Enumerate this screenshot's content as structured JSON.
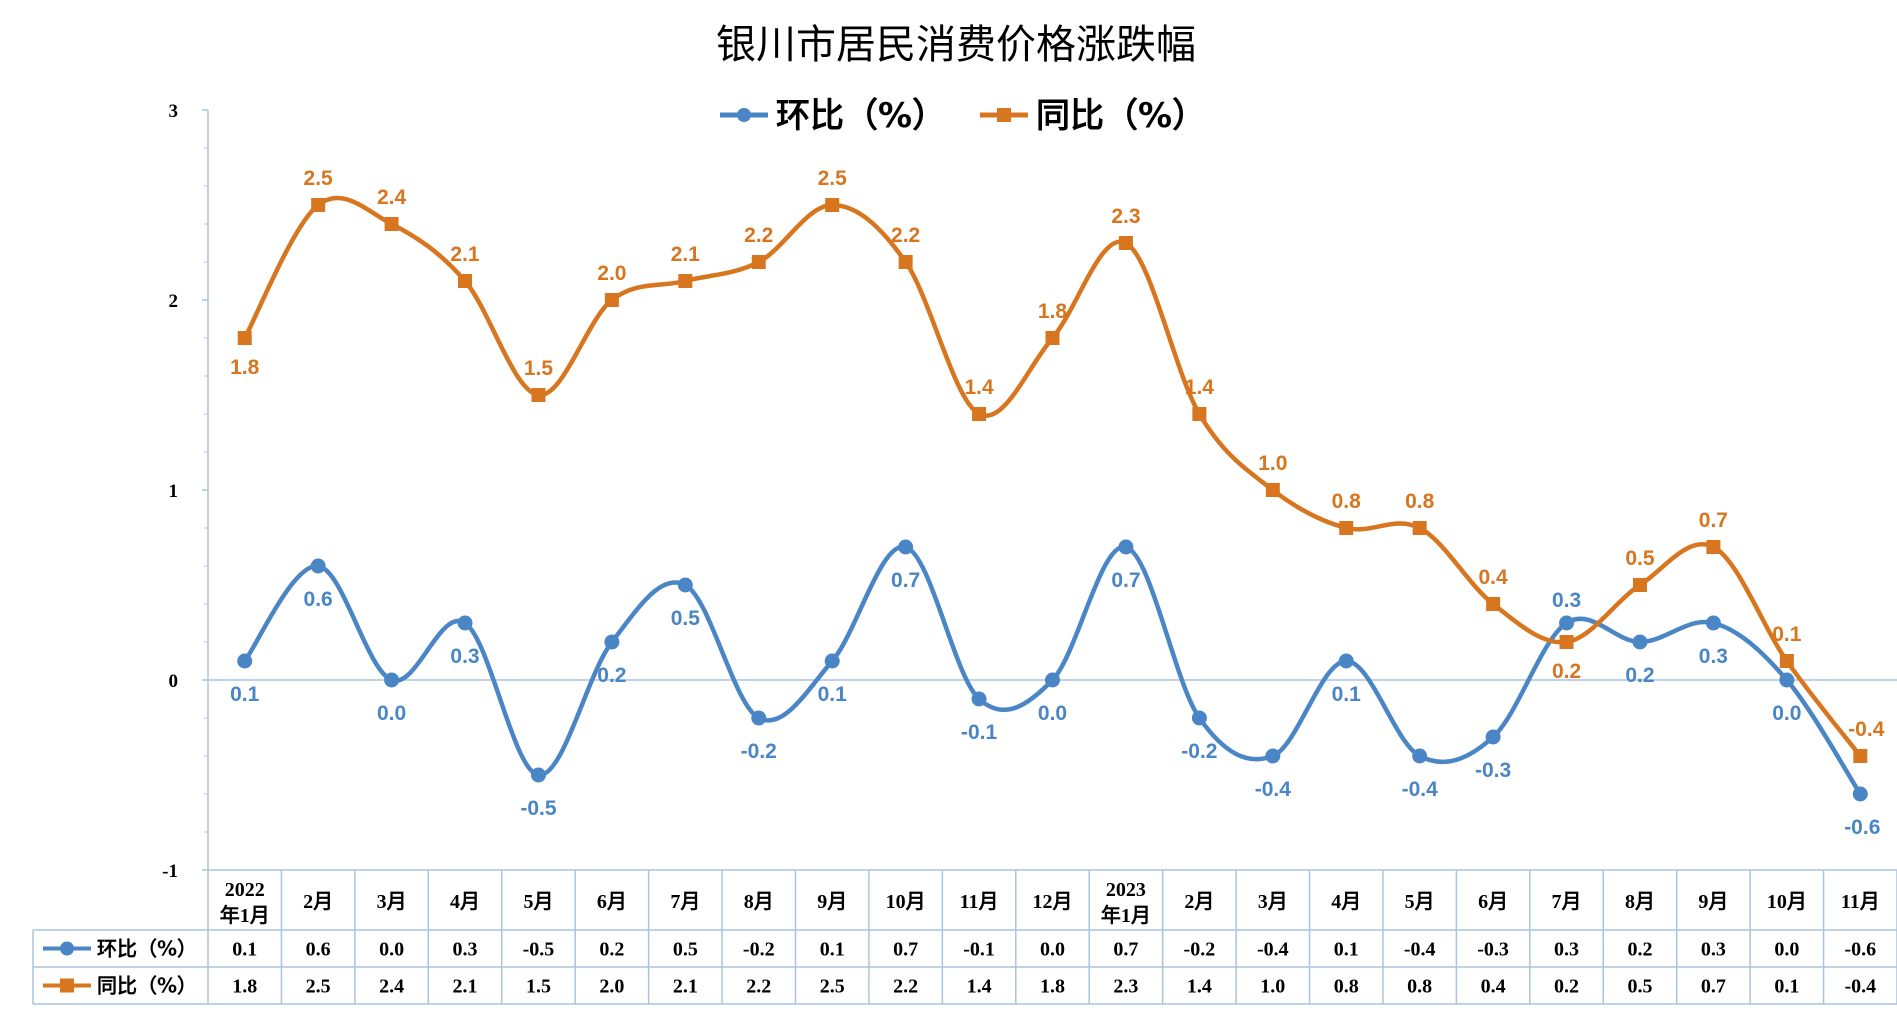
{
  "chart_data": {
    "type": "line",
    "title": "银川市居民消费价格涨跌幅",
    "categories": [
      [
        "2022",
        "年1月"
      ],
      [
        "2月"
      ],
      [
        "3月"
      ],
      [
        "4月"
      ],
      [
        "5月"
      ],
      [
        "6月"
      ],
      [
        "7月"
      ],
      [
        "8月"
      ],
      [
        "9月"
      ],
      [
        "10月"
      ],
      [
        "11月"
      ],
      [
        "12月"
      ],
      [
        "2023",
        "年1月"
      ],
      [
        "2月"
      ],
      [
        "3月"
      ],
      [
        "4月"
      ],
      [
        "5月"
      ],
      [
        "6月"
      ],
      [
        "7月"
      ],
      [
        "8月"
      ],
      [
        "9月"
      ],
      [
        "10月"
      ],
      [
        "11月"
      ]
    ],
    "series": [
      {
        "name": "环比（%）",
        "color": "#4a86c5",
        "marker": "circle",
        "values": [
          0.1,
          0.6,
          0.0,
          0.3,
          -0.5,
          0.2,
          0.5,
          -0.2,
          0.1,
          0.7,
          -0.1,
          0.0,
          0.7,
          -0.2,
          -0.4,
          0.1,
          -0.4,
          -0.3,
          0.3,
          0.2,
          0.3,
          0.0,
          -0.6
        ],
        "labels": [
          "0.1",
          "0.6",
          "0.0",
          "0.3",
          "-0.5",
          "0.2",
          "0.5",
          "-0.2",
          "0.1",
          "0.7",
          "-0.1",
          "0.0",
          "0.7",
          "-0.2",
          "-0.4",
          "0.1",
          "-0.4",
          "-0.3",
          "0.3",
          "0.2",
          "0.3",
          "0.0",
          "-0.6"
        ]
      },
      {
        "name": "同比（%）",
        "color": "#d8751f",
        "marker": "square",
        "values": [
          1.8,
          2.5,
          2.4,
          2.1,
          1.5,
          2.0,
          2.1,
          2.2,
          2.5,
          2.2,
          1.4,
          1.8,
          2.3,
          1.4,
          1.0,
          0.8,
          0.8,
          0.4,
          0.2,
          0.5,
          0.7,
          0.1,
          -0.4
        ],
        "labels": [
          "1.8",
          "2.5",
          "2.4",
          "2.1",
          "1.5",
          "2.0",
          "2.1",
          "2.2",
          "2.5",
          "2.2",
          "1.4",
          "1.8",
          "2.3",
          "1.4",
          "1.0",
          "0.8",
          "0.8",
          "0.4",
          "0.2",
          "0.5",
          "0.7",
          "0.1",
          "-0.4"
        ]
      }
    ],
    "ylim": [
      -1,
      3
    ],
    "yticks": [
      "3",
      "2",
      "1",
      "0",
      "-1"
    ],
    "legend": "top-center",
    "data_table": true,
    "grid": false
  }
}
